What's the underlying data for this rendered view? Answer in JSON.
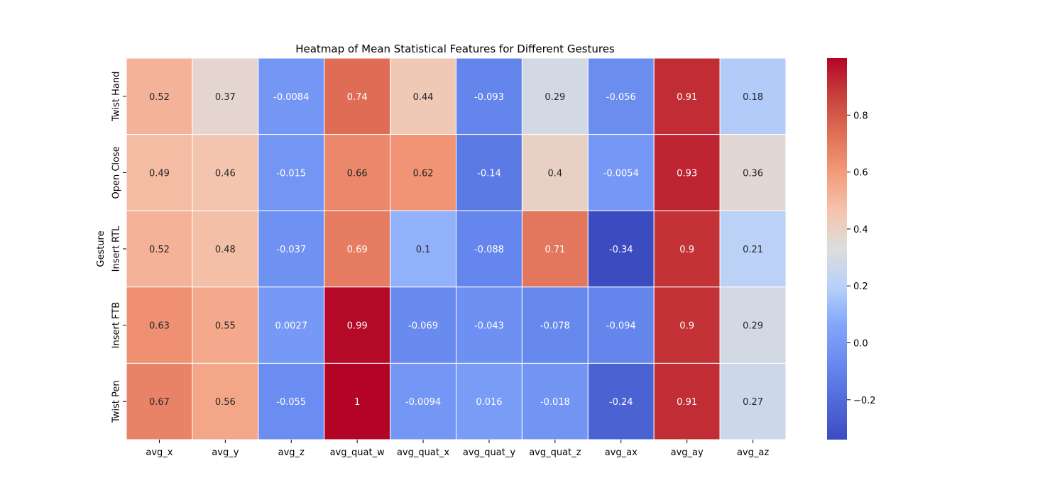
{
  "chart_data": {
    "type": "heatmap",
    "title": "Heatmap of Mean Statistical Features for Different Gestures",
    "xlabel": "",
    "ylabel": "Gesture",
    "colormap": "coolwarm",
    "vmin": -0.34,
    "vmax": 1.0,
    "x_categories": [
      "avg_x",
      "avg_y",
      "avg_z",
      "avg_quat_w",
      "avg_quat_x",
      "avg_quat_y",
      "avg_quat_z",
      "avg_ax",
      "avg_ay",
      "avg_az"
    ],
    "y_categories": [
      "Twist Hand",
      "Open Close",
      "Insert RTL",
      "Insert FTB",
      "Twist Pen"
    ],
    "values": [
      [
        0.52,
        0.37,
        -0.0084,
        0.74,
        0.44,
        -0.093,
        0.29,
        -0.056,
        0.91,
        0.18
      ],
      [
        0.49,
        0.46,
        -0.015,
        0.66,
        0.62,
        -0.14,
        0.4,
        -0.0054,
        0.93,
        0.36
      ],
      [
        0.52,
        0.48,
        -0.037,
        0.69,
        0.1,
        -0.088,
        0.71,
        -0.34,
        0.9,
        0.21
      ],
      [
        0.63,
        0.55,
        0.0027,
        0.99,
        -0.069,
        -0.043,
        -0.078,
        -0.094,
        0.9,
        0.29
      ],
      [
        0.67,
        0.56,
        -0.055,
        1.0,
        -0.0094,
        0.016,
        -0.018,
        -0.24,
        0.91,
        0.27
      ]
    ],
    "labels": [
      [
        "0.52",
        "0.37",
        "-0.0084",
        "0.74",
        "0.44",
        "-0.093",
        "0.29",
        "-0.056",
        "0.91",
        "0.18"
      ],
      [
        "0.49",
        "0.46",
        "-0.015",
        "0.66",
        "0.62",
        "-0.14",
        "0.4",
        "-0.0054",
        "0.93",
        "0.36"
      ],
      [
        "0.52",
        "0.48",
        "-0.037",
        "0.69",
        "0.1",
        "-0.088",
        "0.71",
        "-0.34",
        "0.9",
        "0.21"
      ],
      [
        "0.63",
        "0.55",
        "0.0027",
        "0.99",
        "-0.069",
        "-0.043",
        "-0.078",
        "-0.094",
        "0.9",
        "0.29"
      ],
      [
        "0.67",
        "0.56",
        "-0.055",
        "1",
        "-0.0094",
        "0.016",
        "-0.018",
        "-0.24",
        "0.91",
        "0.27"
      ]
    ],
    "colorbar_ticks": [
      -0.2,
      0.0,
      0.2,
      0.4,
      0.6,
      0.8
    ],
    "colorbar_tick_labels": [
      "−0.2",
      "0.0",
      "0.2",
      "0.4",
      "0.6",
      "0.8"
    ]
  }
}
